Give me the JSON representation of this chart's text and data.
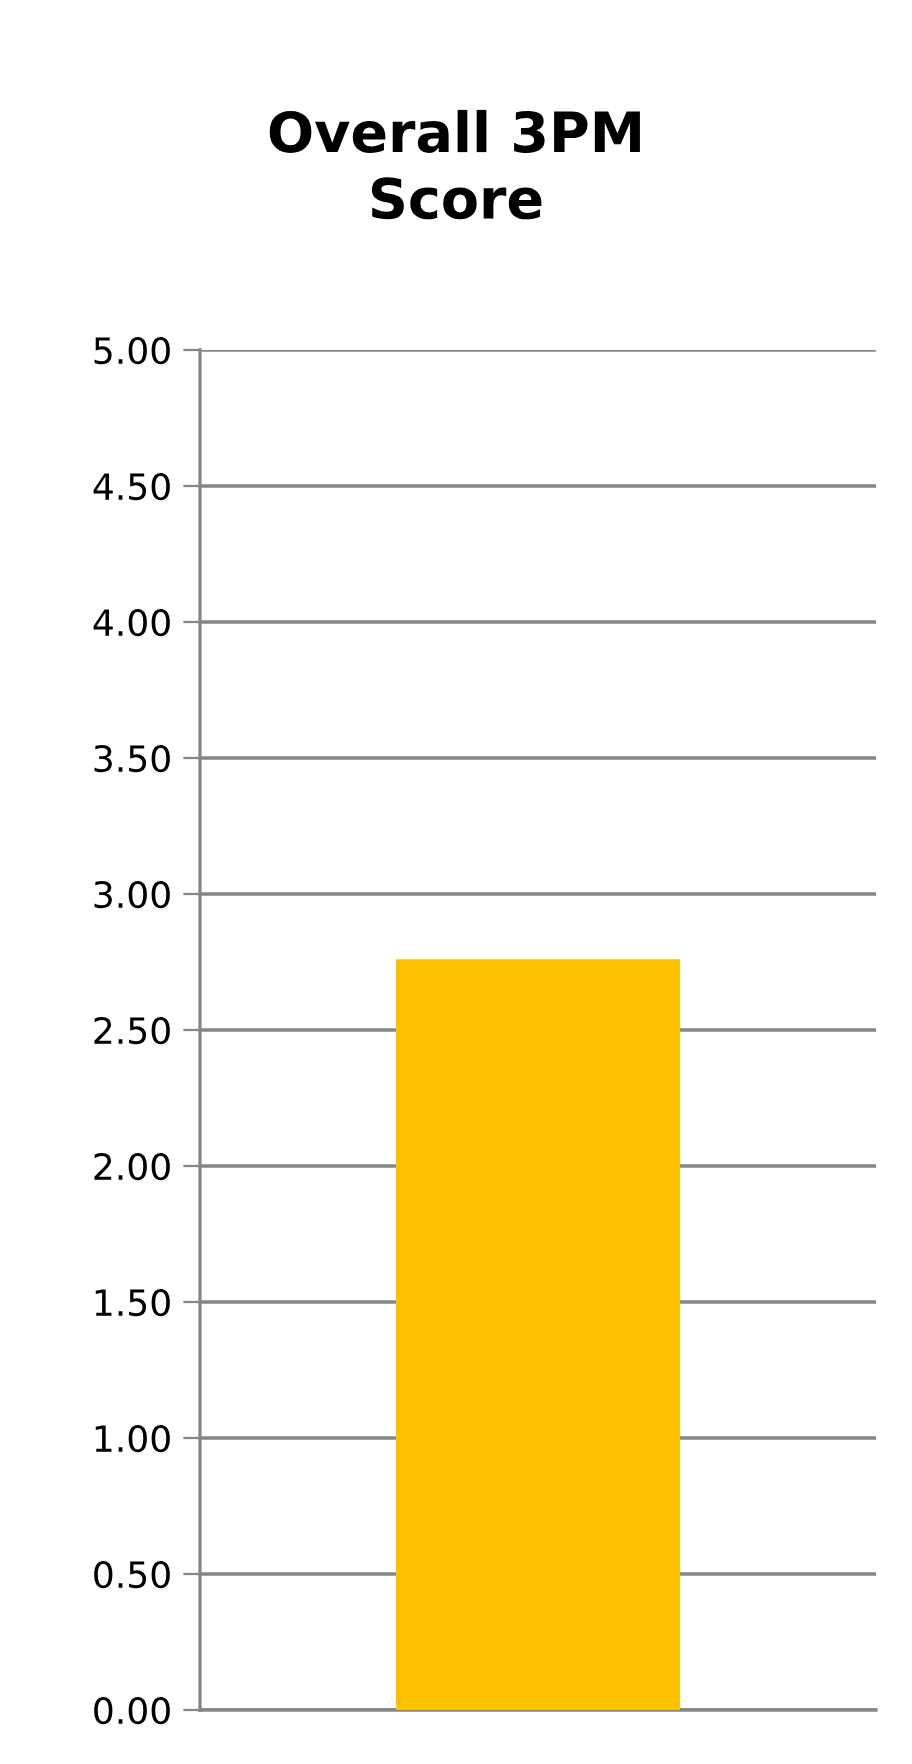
{
  "chart_data": {
    "type": "bar",
    "title": "Overall 3PM\nScore",
    "categories": [
      null
    ],
    "series": [
      {
        "color": "#ffc000",
        "values": [
          2.76
        ]
      }
    ],
    "ylim": [
      0,
      5
    ],
    "yticks": [
      {
        "value": 0,
        "label": "0.00"
      },
      {
        "value": 0.5,
        "label": "0.50"
      },
      {
        "value": 1,
        "label": "1.00"
      },
      {
        "value": 1.5,
        "label": "1.50"
      },
      {
        "value": 2,
        "label": "2.00"
      },
      {
        "value": 2.5,
        "label": "2.50"
      },
      {
        "value": 3,
        "label": "3.00"
      },
      {
        "value": 3.5,
        "label": "3.50"
      },
      {
        "value": 4,
        "label": "4.00"
      },
      {
        "value": 4.5,
        "label": "4.50"
      },
      {
        "value": 5,
        "label": "5.00"
      }
    ],
    "grid": "y",
    "legend": false
  }
}
